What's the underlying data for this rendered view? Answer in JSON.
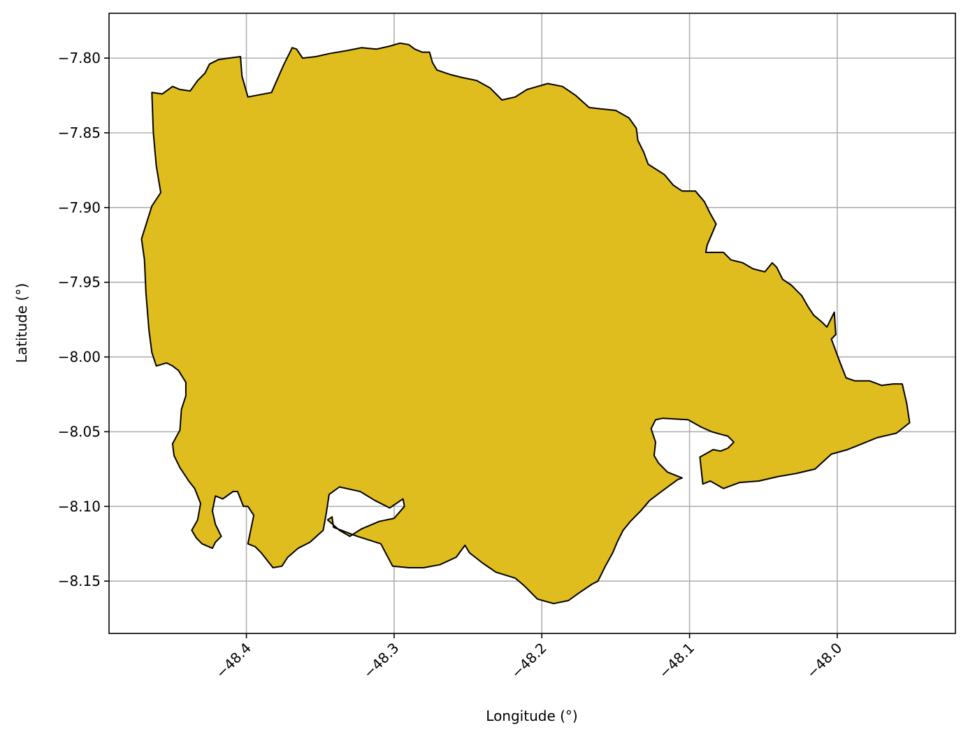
{
  "chart_data": {
    "type": "map",
    "xlabel": "Longitude (°)",
    "ylabel": "Latitude (°)",
    "xlim": [
      -48.493,
      -47.92
    ],
    "ylim": [
      -8.185,
      -7.77
    ],
    "xticks": [
      -48.4,
      -48.3,
      -48.2,
      -48.1,
      -48.0
    ],
    "xtick_labels": [
      "−48.4",
      "−48.3",
      "−48.2",
      "−48.1",
      "−48.0"
    ],
    "yticks": [
      -7.8,
      -7.85,
      -7.9,
      -7.95,
      -8.0,
      -8.05,
      -8.1,
      -8.15
    ],
    "ytick_labels": [
      "−7.80",
      "−7.85",
      "−7.90",
      "−7.95",
      "−8.00",
      "−8.05",
      "−8.10",
      "−8.15"
    ],
    "grid": true,
    "region": {
      "fill": "#dfbd1f",
      "edge": "#000000",
      "outline": [
        [
          -48.464,
          -7.823
        ],
        [
          -48.457,
          -7.824
        ],
        [
          -48.45,
          -7.819
        ],
        [
          -48.445,
          -7.821
        ],
        [
          -48.438,
          -7.822
        ],
        [
          -48.433,
          -7.815
        ],
        [
          -48.428,
          -7.81
        ],
        [
          -48.425,
          -7.804
        ],
        [
          -48.419,
          -7.801
        ],
        [
          -48.412,
          -7.8
        ],
        [
          -48.404,
          -7.799
        ],
        [
          -48.403,
          -7.812
        ],
        [
          -48.399,
          -7.826
        ],
        [
          -48.383,
          -7.823
        ],
        [
          -48.375,
          -7.805
        ],
        [
          -48.369,
          -7.793
        ],
        [
          -48.366,
          -7.794
        ],
        [
          -48.362,
          -7.8
        ],
        [
          -48.353,
          -7.799
        ],
        [
          -48.344,
          -7.797
        ],
        [
          -48.332,
          -7.795
        ],
        [
          -48.322,
          -7.793
        ],
        [
          -48.312,
          -7.794
        ],
        [
          -48.303,
          -7.792
        ],
        [
          -48.296,
          -7.79
        ],
        [
          -48.29,
          -7.791
        ],
        [
          -48.286,
          -7.794
        ],
        [
          -48.281,
          -7.796
        ],
        [
          -48.276,
          -7.796
        ],
        [
          -48.274,
          -7.803
        ],
        [
          -48.271,
          -7.808
        ],
        [
          -48.262,
          -7.811
        ],
        [
          -48.254,
          -7.813
        ],
        [
          -48.244,
          -7.815
        ],
        [
          -48.235,
          -7.82
        ],
        [
          -48.227,
          -7.828
        ],
        [
          -48.218,
          -7.826
        ],
        [
          -48.21,
          -7.821
        ],
        [
          -48.196,
          -7.817
        ],
        [
          -48.186,
          -7.819
        ],
        [
          -48.177,
          -7.825
        ],
        [
          -48.168,
          -7.833
        ],
        [
          -48.16,
          -7.834
        ],
        [
          -48.15,
          -7.835
        ],
        [
          -48.141,
          -7.84
        ],
        [
          -48.136,
          -7.847
        ],
        [
          -48.135,
          -7.855
        ],
        [
          -48.131,
          -7.863
        ],
        [
          -48.128,
          -7.871
        ],
        [
          -48.117,
          -7.878
        ],
        [
          -48.111,
          -7.885
        ],
        [
          -48.105,
          -7.889
        ],
        [
          -48.096,
          -7.889
        ],
        [
          -48.09,
          -7.896
        ],
        [
          -48.086,
          -7.904
        ],
        [
          -48.082,
          -7.911
        ],
        [
          -48.085,
          -7.918
        ],
        [
          -48.088,
          -7.925
        ],
        [
          -48.089,
          -7.93
        ],
        [
          -48.077,
          -7.93
        ],
        [
          -48.072,
          -7.935
        ],
        [
          -48.064,
          -7.937
        ],
        [
          -48.057,
          -7.941
        ],
        [
          -48.049,
          -7.943
        ],
        [
          -48.044,
          -7.937
        ],
        [
          -48.041,
          -7.94
        ],
        [
          -48.037,
          -7.948
        ],
        [
          -48.031,
          -7.952
        ],
        [
          -48.024,
          -7.959
        ],
        [
          -48.02,
          -7.966
        ],
        [
          -48.016,
          -7.972
        ],
        [
          -48.01,
          -7.977
        ],
        [
          -48.007,
          -7.98
        ],
        [
          -48.002,
          -7.97
        ],
        [
          -48.001,
          -7.985
        ],
        [
          -48.004,
          -7.988
        ],
        [
          -48.001,
          -7.996
        ],
        [
          -47.998,
          -8.004
        ],
        [
          -47.994,
          -8.014
        ],
        [
          -47.988,
          -8.016
        ],
        [
          -47.978,
          -8.016
        ],
        [
          -47.97,
          -8.019
        ],
        [
          -47.962,
          -8.018
        ],
        [
          -47.956,
          -8.018
        ],
        [
          -47.953,
          -8.031
        ],
        [
          -47.951,
          -8.044
        ],
        [
          -47.96,
          -8.051
        ],
        [
          -47.973,
          -8.054
        ],
        [
          -47.983,
          -8.058
        ],
        [
          -47.993,
          -8.062
        ],
        [
          -48.004,
          -8.065
        ],
        [
          -48.015,
          -8.075
        ],
        [
          -48.028,
          -8.078
        ],
        [
          -48.04,
          -8.08
        ],
        [
          -48.053,
          -8.083
        ],
        [
          -48.066,
          -8.084
        ],
        [
          -48.077,
          -8.088
        ],
        [
          -48.086,
          -8.083
        ],
        [
          -48.091,
          -8.085
        ],
        [
          -48.092,
          -8.076
        ],
        [
          -48.093,
          -8.067
        ],
        [
          -48.084,
          -8.062
        ],
        [
          -48.079,
          -8.063
        ],
        [
          -48.074,
          -8.061
        ],
        [
          -48.07,
          -8.057
        ],
        [
          -48.074,
          -8.053
        ],
        [
          -48.078,
          -8.052
        ],
        [
          -48.085,
          -8.05
        ],
        [
          -48.092,
          -8.047
        ],
        [
          -48.101,
          -8.042
        ],
        [
          -48.118,
          -8.041
        ],
        [
          -48.123,
          -8.042
        ],
        [
          -48.126,
          -8.048
        ],
        [
          -48.123,
          -8.057
        ],
        [
          -48.124,
          -8.066
        ],
        [
          -48.121,
          -8.071
        ],
        [
          -48.115,
          -8.077
        ],
        [
          -48.105,
          -8.081
        ],
        [
          -48.108,
          -8.082
        ],
        [
          -48.119,
          -8.09
        ],
        [
          -48.127,
          -8.096
        ],
        [
          -48.133,
          -8.103
        ],
        [
          -48.14,
          -8.11
        ],
        [
          -48.145,
          -8.116
        ],
        [
          -48.149,
          -8.124
        ],
        [
          -48.152,
          -8.131
        ],
        [
          -48.157,
          -8.14
        ],
        [
          -48.162,
          -8.15
        ],
        [
          -48.166,
          -8.152
        ],
        [
          -48.175,
          -8.158
        ],
        [
          -48.182,
          -8.163
        ],
        [
          -48.192,
          -8.165
        ],
        [
          -48.203,
          -8.162
        ],
        [
          -48.212,
          -8.153
        ],
        [
          -48.218,
          -8.148
        ],
        [
          -48.231,
          -8.144
        ],
        [
          -48.24,
          -8.138
        ],
        [
          -48.249,
          -8.131
        ],
        [
          -48.252,
          -8.126
        ],
        [
          -48.258,
          -8.134
        ],
        [
          -48.269,
          -8.139
        ],
        [
          -48.28,
          -8.141
        ],
        [
          -48.29,
          -8.141
        ],
        [
          -48.301,
          -8.14
        ],
        [
          -48.309,
          -8.125
        ],
        [
          -48.325,
          -8.12
        ],
        [
          -48.341,
          -8.114
        ],
        [
          -48.342,
          -8.107
        ],
        [
          -48.345,
          -8.109
        ],
        [
          -48.337,
          -8.116
        ],
        [
          -48.33,
          -8.12
        ],
        [
          -48.322,
          -8.115
        ],
        [
          -48.31,
          -8.11
        ],
        [
          -48.3,
          -8.108
        ],
        [
          -48.293,
          -8.1
        ],
        [
          -48.294,
          -8.095
        ],
        [
          -48.303,
          -8.101
        ],
        [
          -48.313,
          -8.096
        ],
        [
          -48.323,
          -8.09
        ],
        [
          -48.337,
          -8.087
        ],
        [
          -48.344,
          -8.092
        ],
        [
          -48.346,
          -8.105
        ],
        [
          -48.348,
          -8.116
        ],
        [
          -48.357,
          -8.124
        ],
        [
          -48.365,
          -8.128
        ],
        [
          -48.372,
          -8.134
        ],
        [
          -48.376,
          -8.14
        ],
        [
          -48.382,
          -8.141
        ],
        [
          -48.39,
          -8.131
        ],
        [
          -48.394,
          -8.127
        ],
        [
          -48.399,
          -8.125
        ],
        [
          -48.395,
          -8.106
        ],
        [
          -48.399,
          -8.1
        ],
        [
          -48.402,
          -8.1
        ],
        [
          -48.406,
          -8.09
        ],
        [
          -48.409,
          -8.09
        ],
        [
          -48.416,
          -8.095
        ],
        [
          -48.421,
          -8.093
        ],
        [
          -48.423,
          -8.103
        ],
        [
          -48.421,
          -8.112
        ],
        [
          -48.417,
          -8.12
        ],
        [
          -48.421,
          -8.124
        ],
        [
          -48.423,
          -8.128
        ],
        [
          -48.43,
          -8.125
        ],
        [
          -48.434,
          -8.121
        ],
        [
          -48.437,
          -8.116
        ],
        [
          -48.433,
          -8.109
        ],
        [
          -48.431,
          -8.098
        ],
        [
          -48.435,
          -8.088
        ],
        [
          -48.439,
          -8.083
        ],
        [
          -48.445,
          -8.074
        ],
        [
          -48.449,
          -8.066
        ],
        [
          -48.45,
          -8.058
        ],
        [
          -48.445,
          -8.049
        ],
        [
          -48.444,
          -8.035
        ],
        [
          -48.441,
          -8.026
        ],
        [
          -48.441,
          -8.017
        ],
        [
          -48.446,
          -8.009
        ],
        [
          -48.45,
          -8.006
        ],
        [
          -48.454,
          -8.004
        ],
        [
          -48.461,
          -8.006
        ],
        [
          -48.464,
          -7.997
        ],
        [
          -48.466,
          -7.982
        ],
        [
          -48.468,
          -7.957
        ],
        [
          -48.469,
          -7.935
        ],
        [
          -48.471,
          -7.921
        ],
        [
          -48.464,
          -7.899
        ],
        [
          -48.458,
          -7.89
        ],
        [
          -48.461,
          -7.872
        ],
        [
          -48.463,
          -7.85
        ]
      ]
    }
  }
}
